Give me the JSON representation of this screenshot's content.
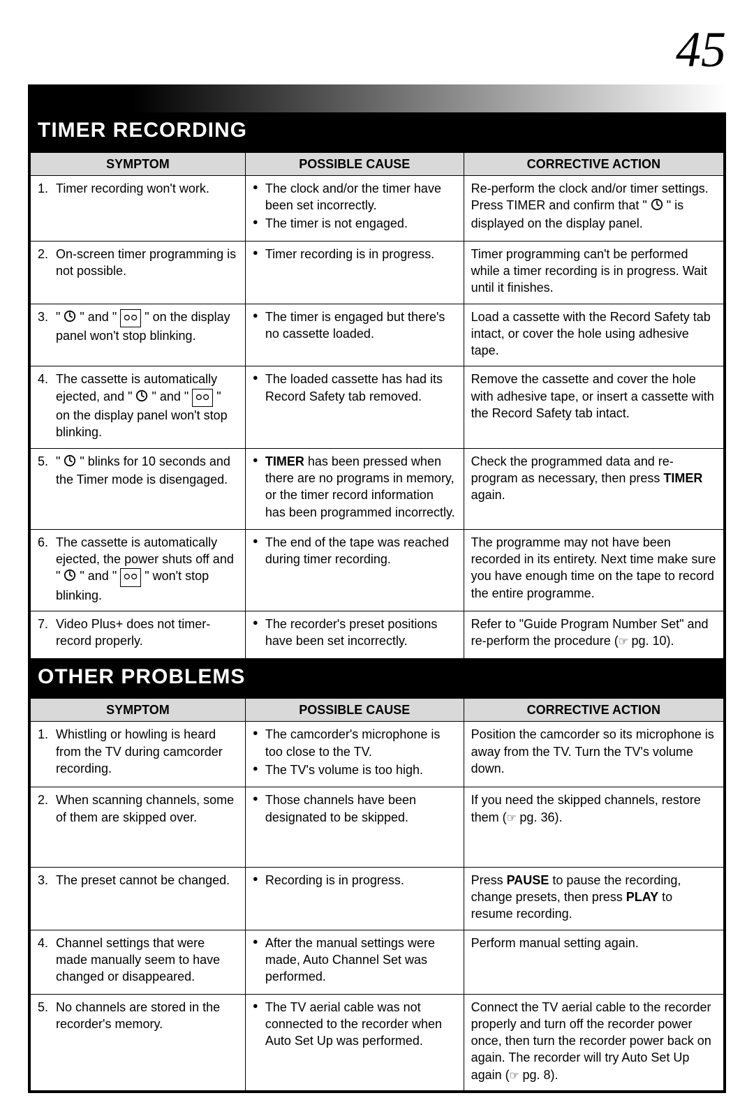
{
  "page_number": "45",
  "colors": {
    "header_bg": "#d9d9d9",
    "section_bg": "#000000",
    "section_fg": "#ffffff",
    "border": "#000000",
    "text": "#000000"
  },
  "sections": [
    {
      "title": "TIMER RECORDING",
      "headers": {
        "symptom": "SYMPTOM",
        "cause": "POSSIBLE CAUSE",
        "action": "CORRECTIVE ACTION"
      },
      "rows": [
        {
          "num": "1.",
          "symptom": "Timer recording won't work.",
          "causes": [
            "The clock and/or the timer have been set incorrectly.",
            "The timer is not engaged."
          ],
          "action_html": "Re-perform the clock and/or timer settings.<br>Press TIMER and confirm that \"{CLOCK}\" is displayed on the display panel."
        },
        {
          "num": "2.",
          "symptom": "On-screen timer programming is not possible.",
          "causes": [
            "Timer recording is in progress."
          ],
          "action_html": "Timer programming can't be performed while a timer recording is in progress. Wait until it finishes."
        },
        {
          "num": "3.",
          "symptom": "\"{CLOCK}\" and \"{CASS}\" on the display panel won't stop blinking.",
          "causes": [
            "The timer is engaged but there's no cassette loaded."
          ],
          "action_html": "Load a cassette with the Record Safety tab intact, or cover the hole using adhesive tape."
        },
        {
          "num": "4.",
          "symptom": "The cassette is automatically ejected, and \"{CLOCK}\" and \"{CASS}\" on the display panel won't stop blinking.",
          "causes": [
            "The loaded cassette has had its Record Safety tab removed."
          ],
          "action_html": "Remove the cassette and cover the hole with adhesive tape, or insert a cassette with the Record Safety tab intact."
        },
        {
          "num": "5.",
          "symptom": "\"{CLOCK}\" blinks for 10 seconds and the Timer mode is disengaged.",
          "causes": [
            "<b>TIMER</b> has been pressed when there are no programs in memory, or the timer record information has been programmed incorrectly."
          ],
          "action_html": "Check the programmed data and re-program as necessary, then press <b>TIMER</b> again."
        },
        {
          "num": "6.",
          "symptom": "The cassette is automatically ejected, the power shuts off and \"{CLOCK}\" and \"{CASS}\" won't stop blinking.",
          "causes": [
            "The end of the tape was reached during timer recording."
          ],
          "action_html": "The programme may not have been recorded in its entirety. Next time make sure you have enough time on the tape to record the entire programme."
        },
        {
          "num": "7.",
          "symptom": "Video Plus+ does not timer-record properly.",
          "causes": [
            "The recorder's preset positions have been set incorrectly."
          ],
          "action_html": "Refer to \"Guide Program Number Set\" and re-perform the procedure (<span class='pgref'></span>pg. 10)."
        }
      ]
    },
    {
      "title": "OTHER PROBLEMS",
      "headers": {
        "symptom": "SYMPTOM",
        "cause": "POSSIBLE CAUSE",
        "action": "CORRECTIVE ACTION"
      },
      "rows": [
        {
          "num": "1.",
          "symptom": "Whistling or howling is heard from the TV during camcorder recording.",
          "causes": [
            "The camcorder's microphone is too close to the TV.",
            "The TV's volume is too high."
          ],
          "action_html": "Position the camcorder so its microphone is away from the TV. Turn the TV's volume down."
        },
        {
          "num": "2.",
          "symptom": "When scanning channels, some of them are skipped over.",
          "causes": [
            "Those channels have been designated to be skipped."
          ],
          "action_html": "If you need the skipped channels, restore them (<span class='pgref'></span>pg. 36).<br><br><br>"
        },
        {
          "num": "3.",
          "symptom": "The preset cannot be changed.",
          "causes": [
            "Recording is in progress."
          ],
          "action_html": "Press <b>PAUSE</b> to pause the recording, change presets, then press <b>PLAY</b> to resume recording."
        },
        {
          "num": "4.",
          "symptom": "Channel settings that were made manually seem to have changed or disappeared.",
          "causes": [
            "After the manual settings were made, Auto Channel Set was performed."
          ],
          "action_html": "Perform manual setting again."
        },
        {
          "num": "5.",
          "symptom": "No channels are stored in the recorder's memory.",
          "causes": [
            "The TV aerial cable was not connected to the recorder when Auto Set Up was performed."
          ],
          "action_html": "Connect the TV aerial cable to the recorder properly and turn off the recorder power once, then turn the recorder power back on again. The recorder will try Auto Set Up again (<span class='pgref'></span>pg. 8)."
        }
      ]
    }
  ]
}
